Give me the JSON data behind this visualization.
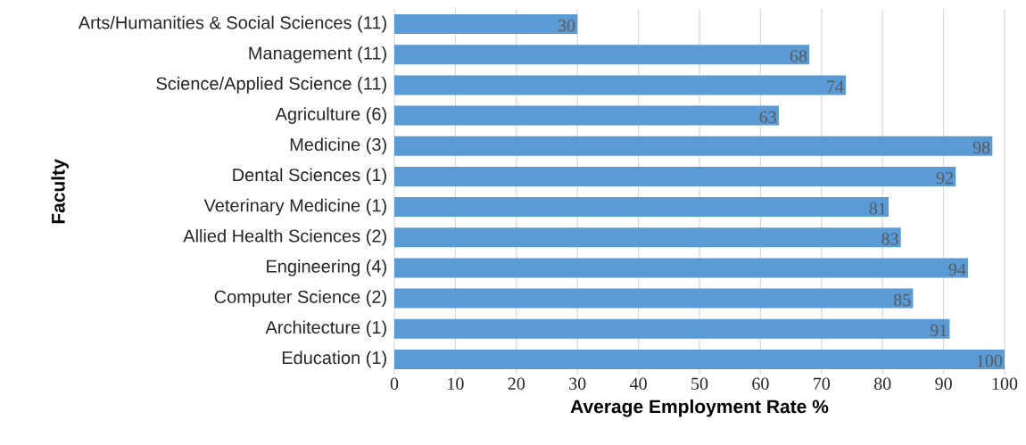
{
  "chart_data": {
    "type": "bar",
    "orientation": "horizontal",
    "xlabel": "Average Employment Rate %",
    "ylabel": "Faculty",
    "categories": [
      "Arts/Humanities & Social Sciences (11)",
      "Management (11)",
      "Science/Applied Science (11)",
      "Agriculture (6)",
      "Medicine (3)",
      "Dental Sciences (1)",
      "Veterinary Medicine (1)",
      "Allied Health Sciences (2)",
      "Engineering (4)",
      "Computer Science (2)",
      "Architecture (1)",
      "Education (1)"
    ],
    "values": [
      30,
      68,
      74,
      63,
      98,
      92,
      81,
      83,
      94,
      85,
      91,
      100
    ],
    "color": "#5b9bd5",
    "xlim": [
      0,
      100
    ],
    "xticks": [
      0,
      10,
      20,
      30,
      40,
      50,
      60,
      70,
      80,
      90,
      100
    ],
    "grid": "x",
    "data_labels": true
  }
}
